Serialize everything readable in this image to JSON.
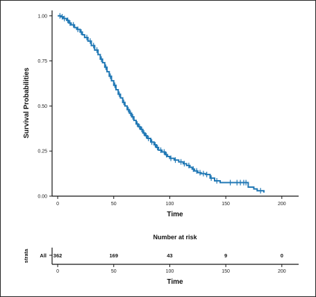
{
  "chart_data": [
    {
      "type": "line",
      "title": "",
      "xlabel": "Time",
      "ylabel": "Survival Probabilities",
      "xlim": [
        -5,
        215
      ],
      "ylim": [
        0,
        1.03
      ],
      "x_ticks": [
        "0",
        "50",
        "100",
        "150",
        "200"
      ],
      "x_tick_values": [
        0,
        50,
        100,
        150,
        200
      ],
      "y_ticks": [
        "0.00",
        "0.25",
        "0.50",
        "0.75",
        "1.00"
      ],
      "y_tick_values": [
        0,
        0.25,
        0.5,
        0.75,
        1.0
      ],
      "step": true,
      "color": "#1f77b4",
      "series": [
        {
          "x": [
            0,
            3,
            5,
            8,
            10,
            12,
            15,
            17,
            20,
            22,
            24,
            27,
            30,
            33,
            36,
            38,
            40,
            42,
            44,
            46,
            48,
            50,
            52,
            54,
            56,
            58,
            60,
            62,
            64,
            66,
            68,
            70,
            72,
            74,
            76,
            78,
            80,
            83,
            86,
            88,
            90,
            93,
            96,
            98,
            100,
            104,
            108,
            112,
            115,
            118,
            120,
            122,
            125,
            128,
            132,
            136,
            140,
            145,
            150,
            158,
            165,
            170,
            175,
            178,
            184
          ],
          "y": [
            1.0,
            0.995,
            0.985,
            0.975,
            0.96,
            0.95,
            0.935,
            0.925,
            0.91,
            0.895,
            0.88,
            0.86,
            0.835,
            0.81,
            0.785,
            0.76,
            0.74,
            0.715,
            0.69,
            0.665,
            0.64,
            0.615,
            0.59,
            0.565,
            0.545,
            0.52,
            0.5,
            0.48,
            0.46,
            0.44,
            0.42,
            0.4,
            0.385,
            0.37,
            0.35,
            0.335,
            0.32,
            0.3,
            0.285,
            0.27,
            0.255,
            0.245,
            0.23,
            0.22,
            0.21,
            0.2,
            0.19,
            0.18,
            0.17,
            0.16,
            0.15,
            0.14,
            0.13,
            0.125,
            0.12,
            0.1,
            0.085,
            0.075,
            0.075,
            0.075,
            0.075,
            0.05,
            0.04,
            0.03,
            0.02
          ],
          "censor_x": [
            2,
            4,
            6,
            9,
            11,
            14,
            18,
            21,
            26,
            29,
            32,
            35,
            39,
            43,
            47,
            51,
            55,
            59,
            63,
            65,
            67,
            71,
            73,
            75,
            77,
            79,
            81,
            84,
            87,
            89,
            92,
            95,
            97,
            101,
            105,
            110,
            113,
            117,
            121,
            124,
            127,
            130,
            133,
            137,
            142,
            154,
            160,
            163,
            166,
            168,
            181
          ]
        }
      ]
    },
    {
      "type": "table",
      "title": "Number at risk",
      "xlabel": "Time",
      "ylabel": "strata",
      "strata": [
        {
          "label": "All",
          "color": "#1f77b4",
          "counts": [
            "362",
            "169",
            "43",
            "9",
            "0"
          ]
        }
      ],
      "x_ticks": [
        "0",
        "50",
        "100",
        "150",
        "200"
      ],
      "x_tick_values": [
        0,
        50,
        100,
        150,
        200
      ],
      "xlim": [
        -5,
        215
      ]
    }
  ]
}
